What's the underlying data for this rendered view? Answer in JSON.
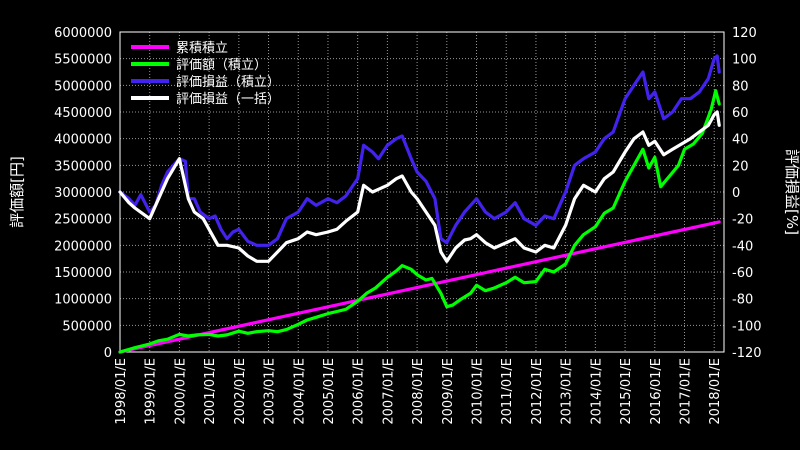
{
  "chart_data": {
    "type": "line",
    "title": "",
    "ylabel_left": "評価額[円]",
    "ylabel_right": "評価損益[%]",
    "ylim_left": [
      0,
      6000000
    ],
    "ylim_right": [
      -120,
      120
    ],
    "yticks_left": [
      "0",
      "500000",
      "1000000",
      "1500000",
      "2000000",
      "2500000",
      "3000000",
      "3500000",
      "4000000",
      "4500000",
      "5000000",
      "5500000",
      "6000000"
    ],
    "yticks_right": [
      "-120",
      "-100",
      "-80",
      "-60",
      "-40",
      "-20",
      "0",
      "20",
      "40",
      "60",
      "80",
      "100",
      "120"
    ],
    "xticks": [
      "1998/01/E",
      "1999/01/E",
      "2000/01/E",
      "2001/01/E",
      "2002/01/E",
      "2003/01/E",
      "2004/01/E",
      "2005/01/E",
      "2006/01/E",
      "2007/01/E",
      "2008/01/E",
      "2009/01/E",
      "2010/01/E",
      "2011/01/E",
      "2012/01/E",
      "2013/01/E",
      "2014/01/E",
      "2015/01/E",
      "2016/01/E",
      "2017/01/E",
      "2018/01/E"
    ],
    "grid": true,
    "legend_position": "top-left",
    "series": [
      {
        "name": "累積積立",
        "axis": "left",
        "color": "#ff00ff",
        "points": [
          [
            1998.0,
            0
          ],
          [
            2018.17,
            2440000
          ]
        ]
      },
      {
        "name": "評価額（積立）",
        "axis": "left",
        "color": "#00ff00",
        "points": [
          [
            1998.0,
            0
          ],
          [
            1998.5,
            80000
          ],
          [
            1999.0,
            150000
          ],
          [
            1999.3,
            210000
          ],
          [
            1999.6,
            240000
          ],
          [
            2000.0,
            330000
          ],
          [
            2000.3,
            300000
          ],
          [
            2000.6,
            320000
          ],
          [
            2001.0,
            330000
          ],
          [
            2001.3,
            300000
          ],
          [
            2001.6,
            320000
          ],
          [
            2002.0,
            390000
          ],
          [
            2002.3,
            350000
          ],
          [
            2002.6,
            380000
          ],
          [
            2003.0,
            400000
          ],
          [
            2003.3,
            380000
          ],
          [
            2003.6,
            420000
          ],
          [
            2004.0,
            520000
          ],
          [
            2004.3,
            600000
          ],
          [
            2004.6,
            650000
          ],
          [
            2005.0,
            720000
          ],
          [
            2005.3,
            760000
          ],
          [
            2005.6,
            800000
          ],
          [
            2006.0,
            950000
          ],
          [
            2006.3,
            1100000
          ],
          [
            2006.6,
            1200000
          ],
          [
            2007.0,
            1400000
          ],
          [
            2007.3,
            1520000
          ],
          [
            2007.5,
            1620000
          ],
          [
            2007.8,
            1550000
          ],
          [
            2008.0,
            1450000
          ],
          [
            2008.3,
            1350000
          ],
          [
            2008.5,
            1380000
          ],
          [
            2008.8,
            1100000
          ],
          [
            2009.0,
            850000
          ],
          [
            2009.2,
            880000
          ],
          [
            2009.5,
            1000000
          ],
          [
            2009.8,
            1100000
          ],
          [
            2010.0,
            1250000
          ],
          [
            2010.3,
            1150000
          ],
          [
            2010.6,
            1200000
          ],
          [
            2011.0,
            1300000
          ],
          [
            2011.3,
            1400000
          ],
          [
            2011.6,
            1300000
          ],
          [
            2012.0,
            1320000
          ],
          [
            2012.3,
            1550000
          ],
          [
            2012.6,
            1500000
          ],
          [
            2013.0,
            1650000
          ],
          [
            2013.3,
            2000000
          ],
          [
            2013.6,
            2200000
          ],
          [
            2014.0,
            2350000
          ],
          [
            2014.3,
            2600000
          ],
          [
            2014.6,
            2700000
          ],
          [
            2015.0,
            3200000
          ],
          [
            2015.3,
            3500000
          ],
          [
            2015.6,
            3800000
          ],
          [
            2015.8,
            3450000
          ],
          [
            2016.0,
            3650000
          ],
          [
            2016.2,
            3100000
          ],
          [
            2016.5,
            3300000
          ],
          [
            2016.8,
            3500000
          ],
          [
            2017.0,
            3800000
          ],
          [
            2017.3,
            3900000
          ],
          [
            2017.6,
            4100000
          ],
          [
            2017.9,
            4550000
          ],
          [
            2018.05,
            4900000
          ],
          [
            2018.17,
            4650000
          ]
        ]
      },
      {
        "name": "評価損益（積立）",
        "axis": "right",
        "color": "#4422ee",
        "points": [
          [
            1998.0,
            0
          ],
          [
            1998.3,
            -5
          ],
          [
            1998.5,
            -10
          ],
          [
            1998.7,
            -2
          ],
          [
            1999.0,
            -15
          ],
          [
            1999.2,
            -10
          ],
          [
            1999.4,
            5
          ],
          [
            1999.6,
            15
          ],
          [
            2000.0,
            25
          ],
          [
            2000.2,
            23
          ],
          [
            2000.3,
            -5
          ],
          [
            2000.5,
            -5
          ],
          [
            2000.7,
            -15
          ],
          [
            2001.0,
            -20
          ],
          [
            2001.2,
            -18
          ],
          [
            2001.4,
            -28
          ],
          [
            2001.6,
            -35
          ],
          [
            2001.8,
            -30
          ],
          [
            2002.0,
            -28
          ],
          [
            2002.3,
            -37
          ],
          [
            2002.6,
            -40
          ],
          [
            2003.0,
            -40
          ],
          [
            2003.3,
            -35
          ],
          [
            2003.6,
            -20
          ],
          [
            2004.0,
            -15
          ],
          [
            2004.3,
            -5
          ],
          [
            2004.6,
            -10
          ],
          [
            2005.0,
            -5
          ],
          [
            2005.3,
            -8
          ],
          [
            2005.6,
            -3
          ],
          [
            2006.0,
            10
          ],
          [
            2006.2,
            35
          ],
          [
            2006.5,
            30
          ],
          [
            2006.7,
            25
          ],
          [
            2007.0,
            35
          ],
          [
            2007.3,
            40
          ],
          [
            2007.5,
            42
          ],
          [
            2007.8,
            25
          ],
          [
            2008.0,
            15
          ],
          [
            2008.3,
            8
          ],
          [
            2008.6,
            -5
          ],
          [
            2008.8,
            -35
          ],
          [
            2009.0,
            -38
          ],
          [
            2009.3,
            -25
          ],
          [
            2009.6,
            -15
          ],
          [
            2009.8,
            -10
          ],
          [
            2010.0,
            -5
          ],
          [
            2010.3,
            -15
          ],
          [
            2010.6,
            -20
          ],
          [
            2011.0,
            -15
          ],
          [
            2011.3,
            -8
          ],
          [
            2011.6,
            -20
          ],
          [
            2012.0,
            -25
          ],
          [
            2012.3,
            -18
          ],
          [
            2012.6,
            -20
          ],
          [
            2013.0,
            0
          ],
          [
            2013.3,
            20
          ],
          [
            2013.6,
            25
          ],
          [
            2014.0,
            30
          ],
          [
            2014.3,
            40
          ],
          [
            2014.6,
            45
          ],
          [
            2015.0,
            70
          ],
          [
            2015.3,
            80
          ],
          [
            2015.6,
            90
          ],
          [
            2015.8,
            70
          ],
          [
            2016.0,
            75
          ],
          [
            2016.3,
            55
          ],
          [
            2016.6,
            60
          ],
          [
            2016.9,
            70
          ],
          [
            2017.2,
            70
          ],
          [
            2017.5,
            75
          ],
          [
            2017.8,
            85
          ],
          [
            2018.0,
            100
          ],
          [
            2018.1,
            102
          ],
          [
            2018.17,
            90
          ]
        ]
      },
      {
        "name": "評価損益（一括）",
        "axis": "right",
        "color": "#ffffff",
        "points": [
          [
            1998.0,
            0
          ],
          [
            1998.3,
            -8
          ],
          [
            1998.5,
            -12
          ],
          [
            1999.0,
            -20
          ],
          [
            1999.3,
            -5
          ],
          [
            1999.6,
            10
          ],
          [
            2000.0,
            25
          ],
          [
            2000.3,
            -5
          ],
          [
            2000.5,
            -15
          ],
          [
            2000.8,
            -20
          ],
          [
            2001.0,
            -28
          ],
          [
            2001.3,
            -40
          ],
          [
            2001.6,
            -40
          ],
          [
            2002.0,
            -42
          ],
          [
            2002.3,
            -48
          ],
          [
            2002.6,
            -52
          ],
          [
            2003.0,
            -52
          ],
          [
            2003.3,
            -45
          ],
          [
            2003.6,
            -38
          ],
          [
            2004.0,
            -35
          ],
          [
            2004.3,
            -30
          ],
          [
            2004.6,
            -32
          ],
          [
            2005.0,
            -30
          ],
          [
            2005.3,
            -28
          ],
          [
            2005.6,
            -22
          ],
          [
            2006.0,
            -15
          ],
          [
            2006.2,
            5
          ],
          [
            2006.5,
            0
          ],
          [
            2006.7,
            2
          ],
          [
            2007.0,
            5
          ],
          [
            2007.3,
            10
          ],
          [
            2007.5,
            12
          ],
          [
            2007.8,
            0
          ],
          [
            2008.0,
            -5
          ],
          [
            2008.3,
            -15
          ],
          [
            2008.6,
            -25
          ],
          [
            2008.8,
            -45
          ],
          [
            2009.0,
            -52
          ],
          [
            2009.3,
            -42
          ],
          [
            2009.6,
            -36
          ],
          [
            2009.8,
            -35
          ],
          [
            2010.0,
            -32
          ],
          [
            2010.3,
            -38
          ],
          [
            2010.6,
            -42
          ],
          [
            2011.0,
            -38
          ],
          [
            2011.3,
            -35
          ],
          [
            2011.6,
            -42
          ],
          [
            2012.0,
            -45
          ],
          [
            2012.3,
            -40
          ],
          [
            2012.6,
            -42
          ],
          [
            2013.0,
            -25
          ],
          [
            2013.3,
            -5
          ],
          [
            2013.6,
            5
          ],
          [
            2014.0,
            0
          ],
          [
            2014.3,
            10
          ],
          [
            2014.6,
            15
          ],
          [
            2015.0,
            30
          ],
          [
            2015.3,
            40
          ],
          [
            2015.6,
            45
          ],
          [
            2015.8,
            35
          ],
          [
            2016.0,
            38
          ],
          [
            2016.3,
            28
          ],
          [
            2016.6,
            32
          ],
          [
            2016.9,
            36
          ],
          [
            2017.2,
            40
          ],
          [
            2017.5,
            45
          ],
          [
            2017.8,
            50
          ],
          [
            2018.0,
            58
          ],
          [
            2018.1,
            60
          ],
          [
            2018.17,
            50
          ]
        ]
      }
    ]
  }
}
